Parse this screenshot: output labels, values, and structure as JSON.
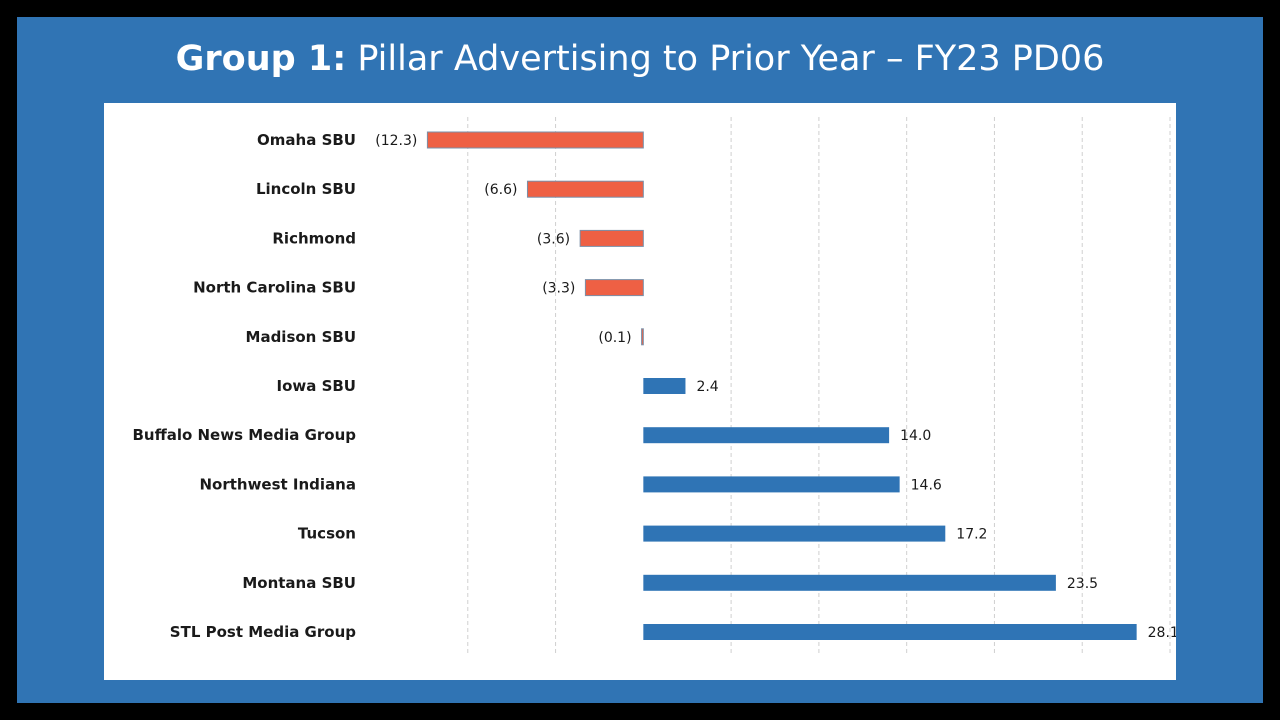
{
  "title": {
    "bold": "Group 1:",
    "rest": "Pillar Advertising to Prior Year – FY23 PD06"
  },
  "colors": {
    "background": "#000000",
    "frame": "#3074b4",
    "positive": "#2f74b5",
    "negative": "#ee6044",
    "grid": "#d0d0d0"
  },
  "chart_data": {
    "type": "bar",
    "orientation": "horizontal",
    "title": "Pillar Advertising to Prior Year – FY23 PD06",
    "categories": [
      "Omaha SBU",
      "Lincoln SBU",
      "Richmond",
      "North Carolina SBU",
      "Madison SBU",
      "Iowa SBU",
      "Buffalo News Media Group",
      "Northwest Indiana",
      "Tucson",
      "Montana SBU",
      "STL Post Media Group"
    ],
    "values": [
      -12.3,
      -6.6,
      -3.6,
      -3.3,
      -0.1,
      2.4,
      14.0,
      14.6,
      17.2,
      23.5,
      28.1
    ],
    "value_labels": [
      "(12.3)",
      "(6.6)",
      "(3.6)",
      "(3.3)",
      "(0.1)",
      "2.4",
      "14.0",
      "14.6",
      "17.2",
      "23.5",
      "28.1"
    ],
    "xlim": [
      -15,
      30
    ],
    "gridlines": [
      -10,
      -5,
      5,
      10,
      15,
      20,
      25,
      30
    ],
    "grid": true,
    "gridline_style": "dashed-vertical",
    "legend": false
  }
}
